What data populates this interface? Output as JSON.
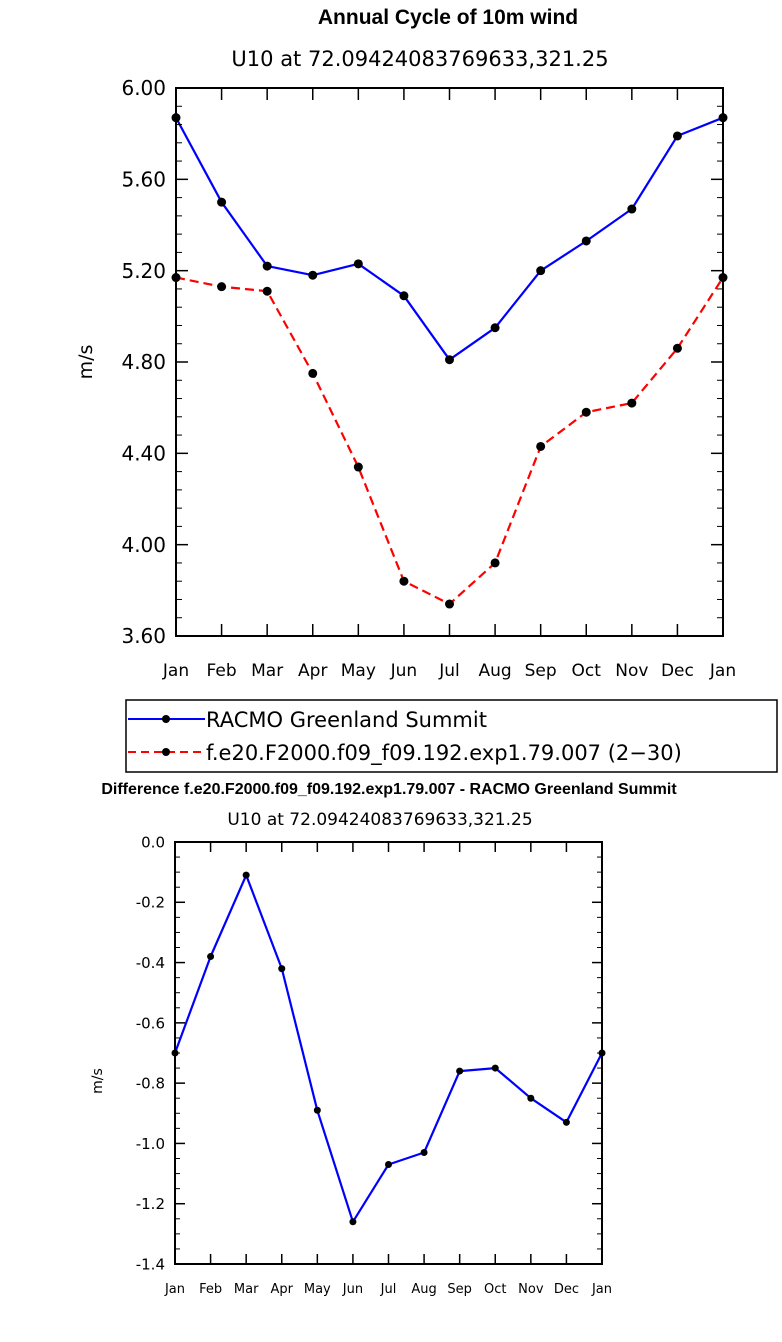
{
  "chart_data": [
    {
      "type": "line",
      "title": "Annual Cycle of 10m wind",
      "subtitle": "U10 at 72.09424083769633,321.25",
      "xlabel": "",
      "ylabel": "m/s",
      "categories": [
        "Jan",
        "Feb",
        "Mar",
        "Apr",
        "May",
        "Jun",
        "Jul",
        "Aug",
        "Sep",
        "Oct",
        "Nov",
        "Dec",
        "Jan"
      ],
      "ylim": [
        3.6,
        6.0
      ],
      "yticks": [
        "6.00",
        "5.60",
        "5.20",
        "4.80",
        "4.40",
        "4.00",
        "3.60"
      ],
      "ytick_values": [
        6.0,
        5.6,
        5.2,
        4.8,
        4.4,
        4.0,
        3.6
      ],
      "series": [
        {
          "name": "RACMO Greenland Summit",
          "color": "#0000ff",
          "dash": "solid",
          "values": [
            5.87,
            5.5,
            5.22,
            5.18,
            5.23,
            5.09,
            4.81,
            4.95,
            5.2,
            5.33,
            5.47,
            5.79,
            5.87
          ]
        },
        {
          "name": "f.e20.F2000.f09_f09.192.exp1.79.007 (2−30)",
          "color": "#ff0000",
          "dash": "dashed",
          "values": [
            5.17,
            5.13,
            5.11,
            4.75,
            4.34,
            3.84,
            3.74,
            3.92,
            4.43,
            4.58,
            4.62,
            4.86,
            5.17
          ]
        }
      ],
      "legend": "bottom"
    },
    {
      "type": "line",
      "title": "Difference f.e20.F2000.f09_f09.192.exp1.79.007 - RACMO Greenland Summit",
      "subtitle": "U10 at 72.09424083769633,321.25",
      "xlabel": "",
      "ylabel": "m/s",
      "categories": [
        "Jan",
        "Feb",
        "Mar",
        "Apr",
        "May",
        "Jun",
        "Jul",
        "Aug",
        "Sep",
        "Oct",
        "Nov",
        "Dec",
        "Jan"
      ],
      "ylim": [
        -1.4,
        0.0
      ],
      "yticks": [
        "0.0",
        "-0.2",
        "-0.4",
        "-0.6",
        "-0.8",
        "-1.0",
        "-1.2",
        "-1.4"
      ],
      "ytick_values": [
        0.0,
        -0.2,
        -0.4,
        -0.6,
        -0.8,
        -1.0,
        -1.2,
        -1.4
      ],
      "series": [
        {
          "name": "Difference",
          "color": "#0000ff",
          "dash": "solid",
          "values": [
            -0.7,
            -0.38,
            -0.11,
            -0.42,
            -0.89,
            -1.26,
            -1.07,
            -1.03,
            -0.76,
            -0.75,
            -0.85,
            -0.93,
            -0.7
          ]
        }
      ]
    }
  ]
}
